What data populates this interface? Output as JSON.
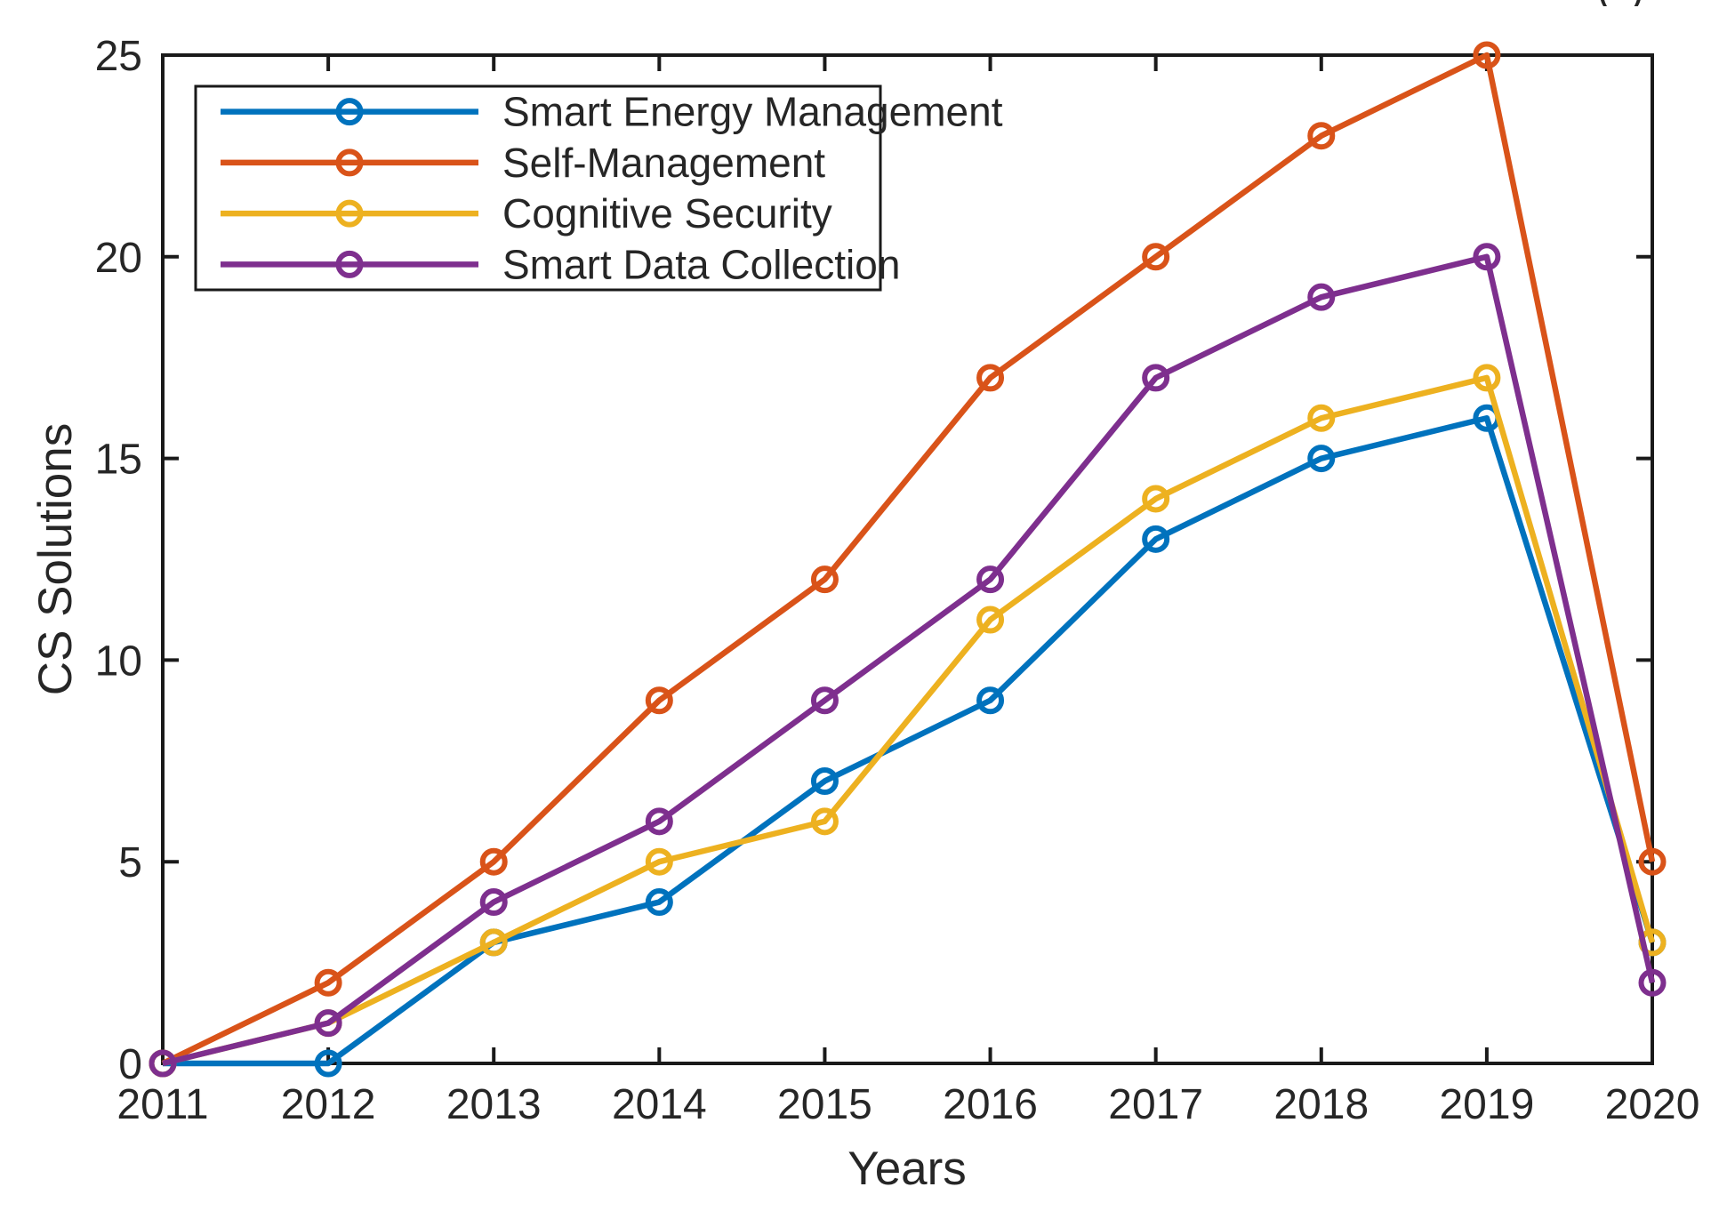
{
  "figure": {
    "background": "#ffffff",
    "partial_caption": "()"
  },
  "chart_data": {
    "type": "line",
    "title": "",
    "xlabel": "Years",
    "ylabel": "CS Solutions",
    "x": [
      2011,
      2012,
      2013,
      2014,
      2015,
      2016,
      2017,
      2018,
      2019,
      2020
    ],
    "x_tick_labels": [
      "2011",
      "2012",
      "2013",
      "2014",
      "2015",
      "2016",
      "2017",
      "2018",
      "2019",
      "2020"
    ],
    "y_ticks": [
      0,
      5,
      10,
      15,
      20,
      25
    ],
    "y_tick_labels": [
      "0",
      "5",
      "10",
      "15",
      "20",
      "25"
    ],
    "xlim": [
      2011,
      2020
    ],
    "ylim": [
      0,
      25
    ],
    "grid": false,
    "legend_position": "top-left-inside",
    "marker": "o",
    "axis_color": "#262626",
    "box_color": "#1a1a1a",
    "series": [
      {
        "name": "Smart Energy Management",
        "color": "#0072BD",
        "values": [
          0,
          0,
          3,
          4,
          7,
          9,
          13,
          15,
          16,
          3
        ]
      },
      {
        "name": "Self-Management",
        "color": "#D95319",
        "values": [
          0,
          2,
          5,
          9,
          12,
          17,
          20,
          23,
          25,
          5
        ]
      },
      {
        "name": "Cognitive Security",
        "color": "#EDB120",
        "values": [
          0,
          1,
          3,
          5,
          6,
          11,
          14,
          16,
          17,
          3
        ]
      },
      {
        "name": "Smart Data Collection",
        "color": "#7E2F8E",
        "values": [
          0,
          1,
          4,
          6,
          9,
          12,
          17,
          19,
          20,
          2
        ]
      }
    ]
  }
}
